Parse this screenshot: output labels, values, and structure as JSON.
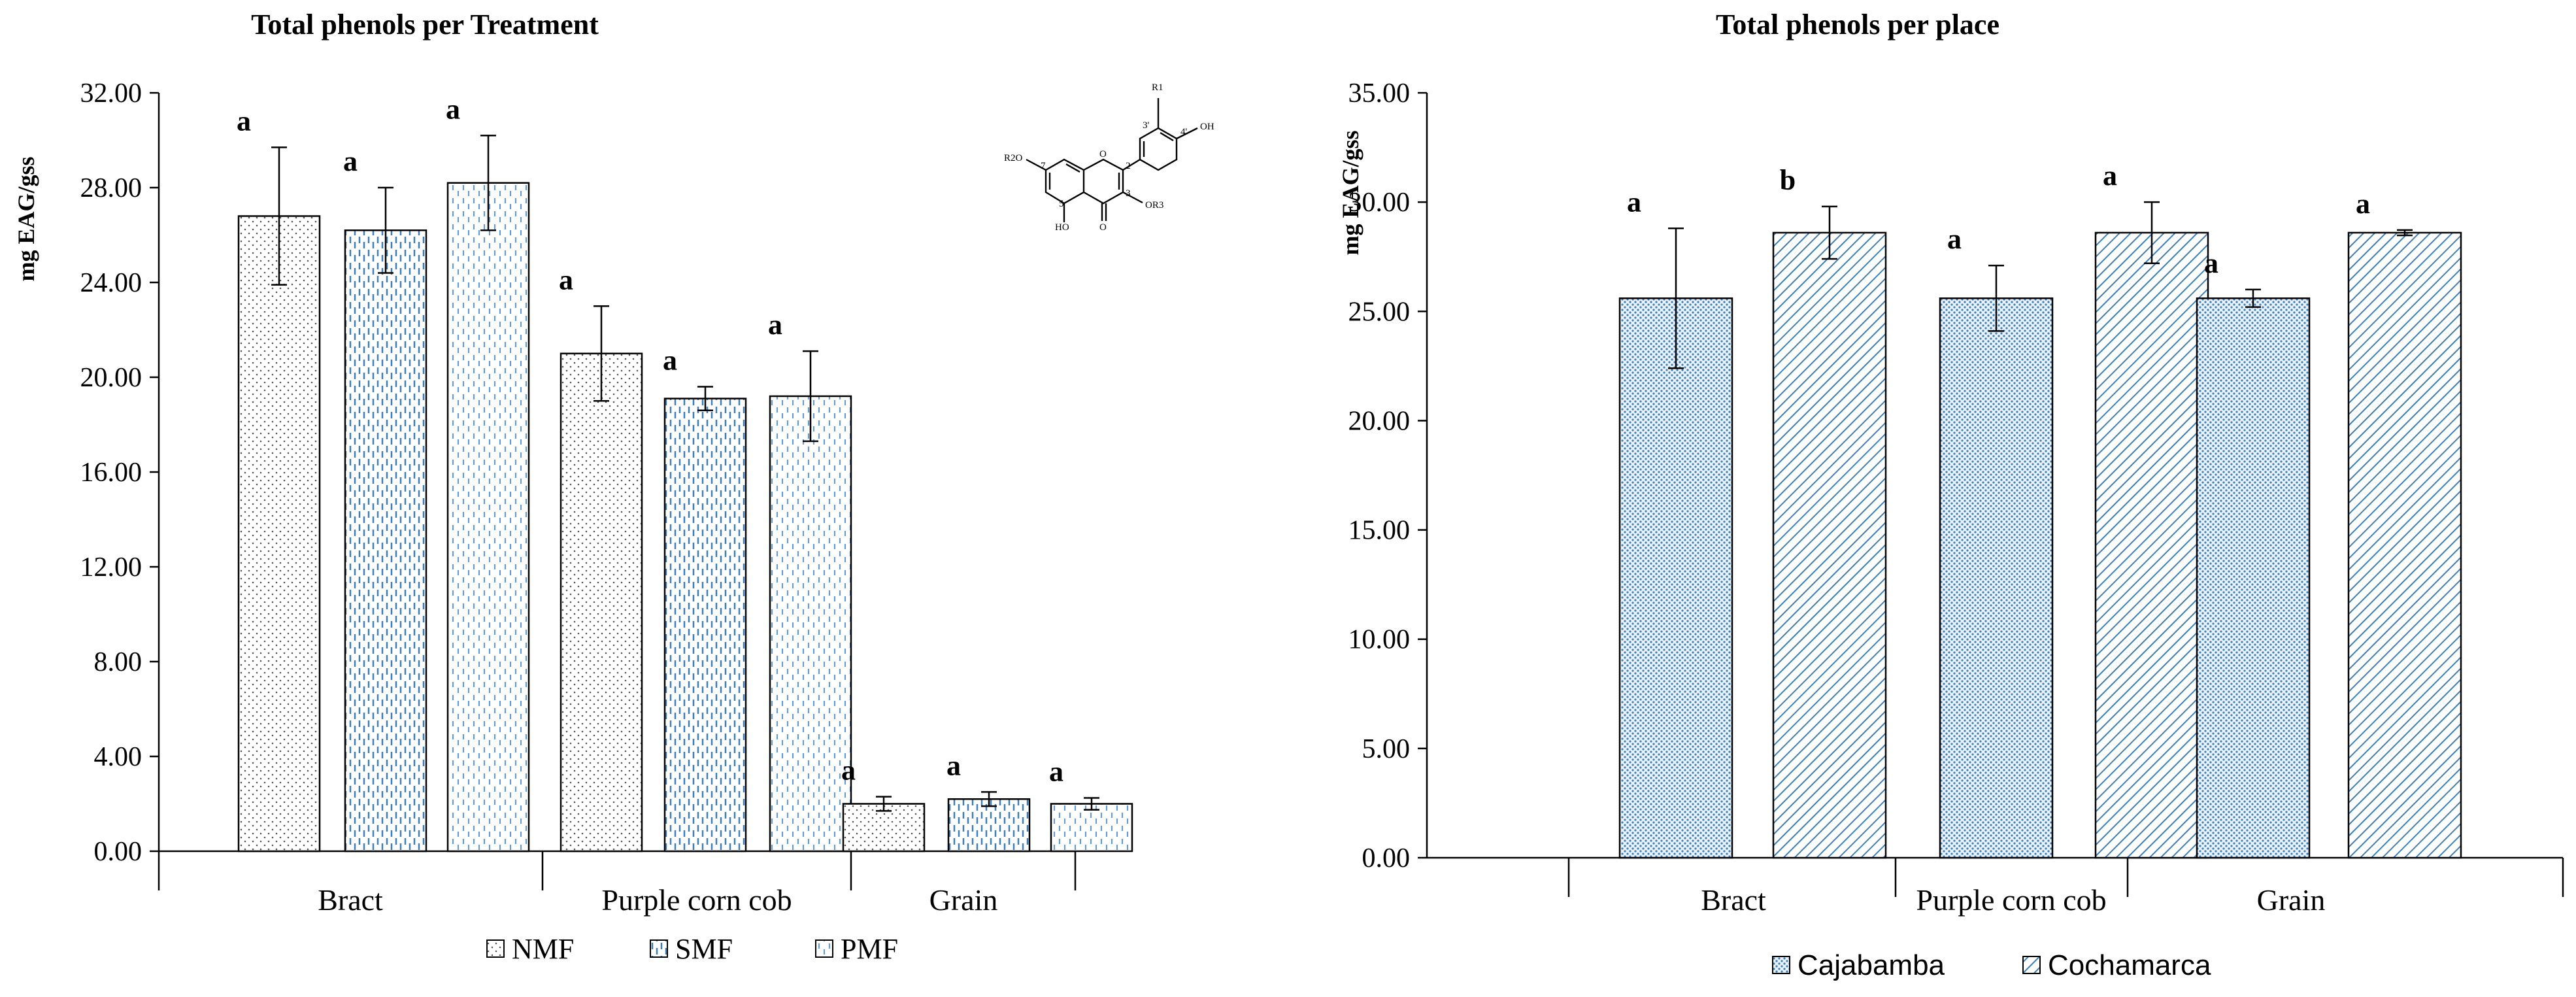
{
  "chart_data": [
    {
      "type": "bar",
      "title": "Total phenols per Treatment",
      "ylabel": "mg EAG/gss",
      "xlabel": "",
      "ylim": [
        0,
        32
      ],
      "yticks": [
        "0.00",
        "4.00",
        "8.00",
        "12.00",
        "16.00",
        "20.00",
        "24.00",
        "28.00",
        "32.00"
      ],
      "categories": [
        "Bract",
        "Purple  corn cob",
        "Grain"
      ],
      "legend_position": "bottom",
      "grid": false,
      "series": [
        {
          "name": "NMF",
          "pattern": "dots",
          "values": [
            26.8,
            21.0,
            2.0
          ],
          "errors": [
            2.9,
            2.0,
            0.3
          ],
          "labels": [
            "a",
            "a",
            "a"
          ]
        },
        {
          "name": "SMF",
          "pattern": "dashed-vertical-blue",
          "values": [
            26.2,
            19.1,
            2.2
          ],
          "errors": [
            1.8,
            0.5,
            0.3
          ],
          "labels": [
            "a",
            "a",
            "a"
          ]
        },
        {
          "name": "PMF",
          "pattern": "dashed-vertical",
          "values": [
            28.2,
            19.2,
            2.0
          ],
          "errors": [
            2.0,
            1.9,
            0.25
          ],
          "labels": [
            "a",
            "a",
            "a"
          ]
        }
      ],
      "inset_molecule": {
        "labels": [
          "R1",
          "3'",
          "4'",
          "OH",
          "R2O",
          "7",
          "O",
          "2",
          "3",
          "OR3",
          "5",
          "HO",
          "O"
        ]
      }
    },
    {
      "type": "bar",
      "title": "Total phenols per place",
      "ylabel": "mg EAG/gss",
      "xlabel": "",
      "ylim": [
        0,
        35
      ],
      "yticks": [
        "0.00",
        "5.00",
        "10.00",
        "15.00",
        "20.00",
        "25.00",
        "30.00",
        "35.00"
      ],
      "categories": [
        "Bract",
        "Purple  corn cob",
        "Grain"
      ],
      "legend_position": "bottom",
      "grid": false,
      "series": [
        {
          "name": "Cajabamba",
          "pattern": "fine-dots-blue",
          "values": [
            25.6,
            25.6,
            25.6
          ],
          "errors": [
            3.2,
            1.5,
            0.4
          ],
          "labels": [
            "a",
            "a",
            "a"
          ]
        },
        {
          "name": "Cochamarca",
          "pattern": "diagonal-blue",
          "values": [
            28.6,
            28.6,
            28.6
          ],
          "errors": [
            1.2,
            1.4,
            0.12
          ],
          "labels": [
            "b",
            "a",
            "a"
          ]
        }
      ]
    }
  ],
  "colors": {
    "axis": "#000000",
    "pattern_blue": "#3f7fb5",
    "pattern_dot": "#555555",
    "pattern_light": "#6a9bc4"
  }
}
